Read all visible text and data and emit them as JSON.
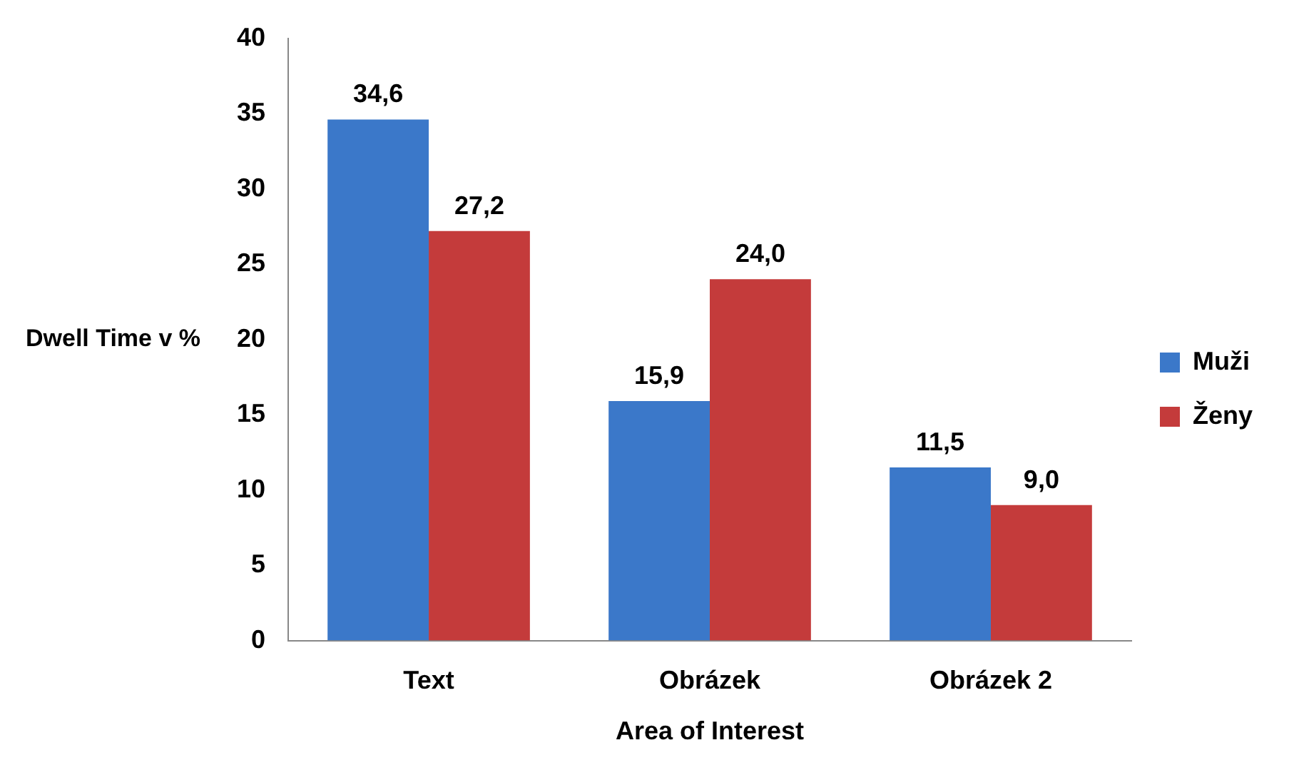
{
  "chart_data": {
    "type": "bar",
    "xlabel": "Area of Interest",
    "ylabel": "Dwell Time v %",
    "categories": [
      "Text",
      "Obrázek",
      "Obrázek 2"
    ],
    "series": [
      {
        "name": "Muži",
        "color": "#3b78c9",
        "values": [
          34.6,
          15.9,
          11.5
        ],
        "value_labels": [
          "34,6",
          "15,9",
          "11,5"
        ]
      },
      {
        "name": "Ženy",
        "color": "#c43b3b",
        "values": [
          27.2,
          24.0,
          9.0
        ],
        "value_labels": [
          "27,2",
          "24,0",
          "9,0"
        ]
      }
    ],
    "ylim": [
      0,
      40
    ],
    "yticks": [
      0,
      5,
      10,
      15,
      20,
      25,
      30,
      35,
      40
    ],
    "grid": false,
    "legend": "right"
  }
}
